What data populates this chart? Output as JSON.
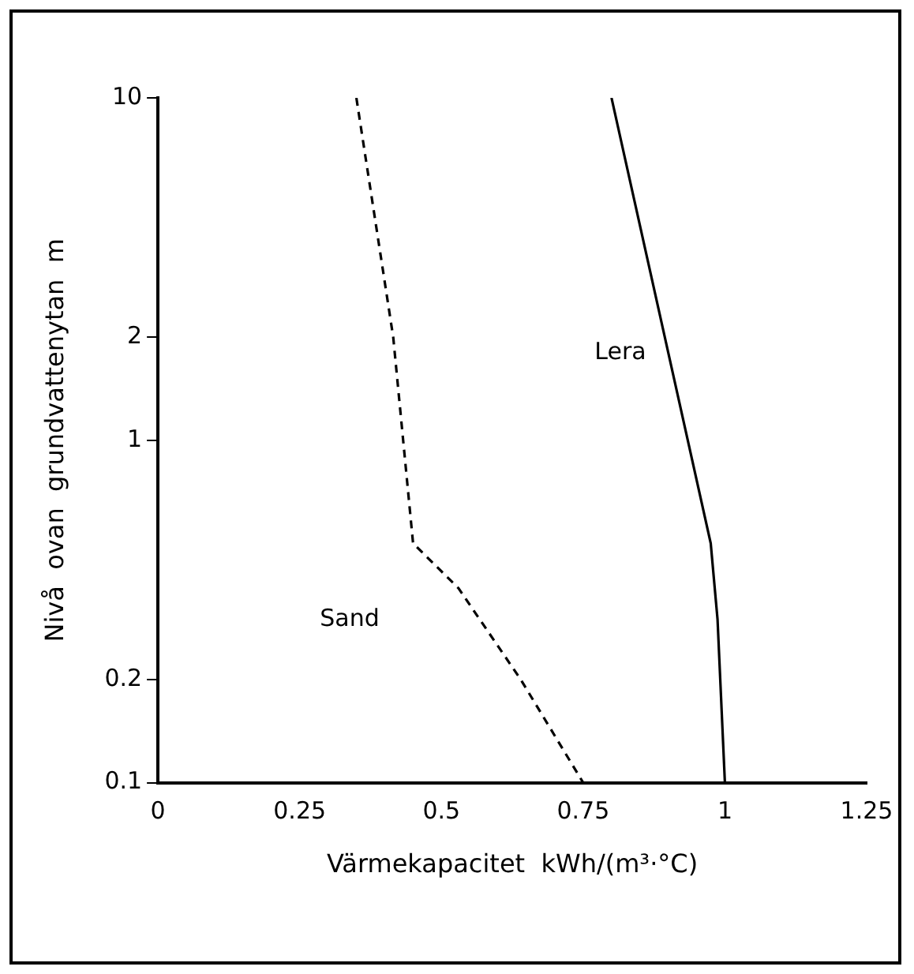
{
  "chart_data": {
    "type": "line",
    "xlabel": "Värmekapacitet  kWh/(m³·°C)",
    "ylabel": "Nivå  ovan  grundvattenytan  m",
    "log": "y",
    "xlim": [
      0,
      1.25
    ],
    "xticks": [
      0,
      0.25,
      0.5,
      0.75,
      1,
      1.25
    ],
    "ylim": [
      0.1,
      10
    ],
    "yticks": [
      0.1,
      0.2,
      1,
      2,
      10
    ],
    "grid": false,
    "legend": false,
    "marker": "none",
    "series": [
      {
        "name": "Sand",
        "color": "#000000",
        "line_style": "dashed",
        "x": [
          0.35,
          0.415,
          0.45,
          0.53,
          0.64,
          0.75
        ],
        "values": [
          10,
          2,
          0.5,
          0.37,
          0.2,
          0.1
        ]
      },
      {
        "name": "Lera",
        "color": "#000000",
        "line_style": "solid",
        "x": [
          0.8,
          0.975,
          0.987,
          1.0
        ],
        "values": [
          10,
          0.5,
          0.3,
          0.1
        ]
      }
    ]
  }
}
